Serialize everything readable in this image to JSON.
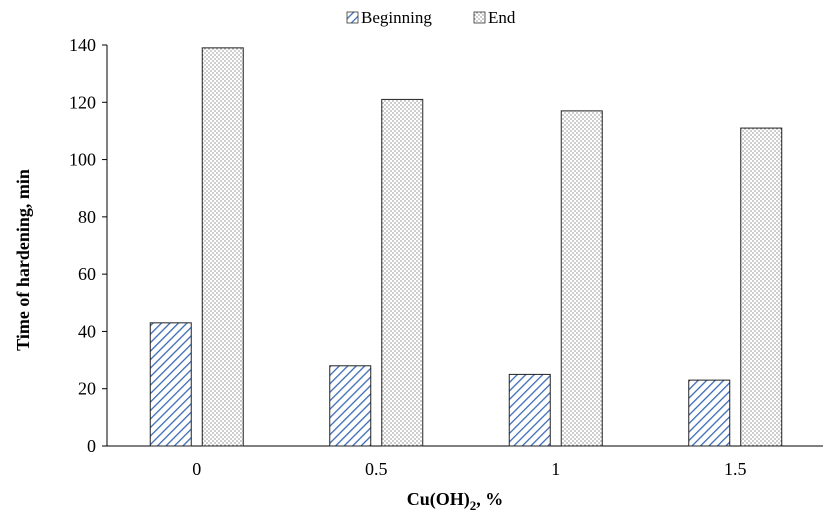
{
  "chart_data": {
    "type": "bar",
    "categories": [
      "0",
      "0.5",
      "1",
      "1.5"
    ],
    "series": [
      {
        "name": "Beginning",
        "values": [
          43,
          28,
          25,
          23
        ],
        "pattern": "diagonal-hatch",
        "color": "#3b6bb5"
      },
      {
        "name": "End",
        "values": [
          139,
          121,
          117,
          111
        ],
        "pattern": "dots",
        "color": "#555555"
      }
    ],
    "xlabel_main": "Cu(OH)",
    "xlabel_sub": "2",
    "xlabel_tail": ", %",
    "ylabel": "Time of hardening, min",
    "ylim": [
      0,
      140
    ],
    "yticks": [
      0,
      20,
      40,
      60,
      80,
      100,
      120,
      140
    ],
    "grid": false,
    "legend_position": "top-center"
  }
}
